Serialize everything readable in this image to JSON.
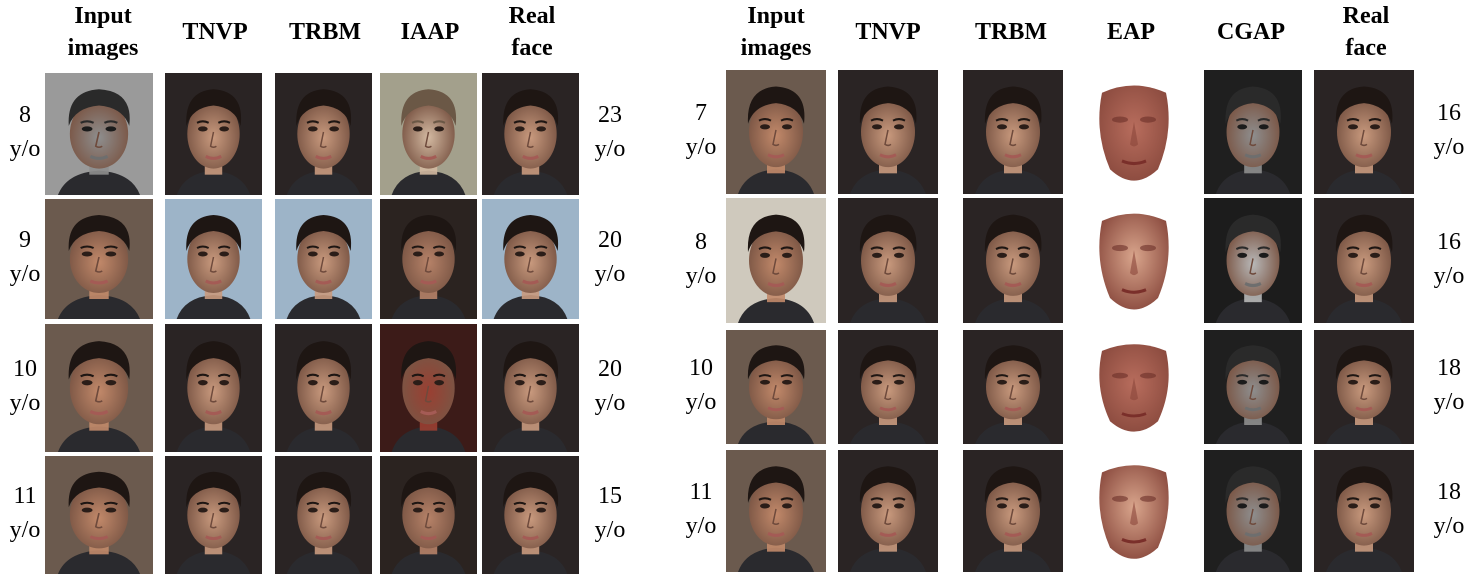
{
  "left_panel": {
    "headers": [
      "Input\nimages",
      "TNVP",
      "TRBM",
      "IAAP",
      "Real\nface"
    ],
    "rows": [
      {
        "input_age": "8\ny/o",
        "target_age": "23\ny/o"
      },
      {
        "input_age": "9\ny/o",
        "target_age": "20\ny/o"
      },
      {
        "input_age": "10\ny/o",
        "target_age": "20\ny/o"
      },
      {
        "input_age": "11\ny/o",
        "target_age": "15\ny/o"
      }
    ]
  },
  "right_panel": {
    "headers": [
      "Input\nimages",
      "TNVP",
      "TRBM",
      "EAP",
      "CGAP",
      "Real\nface"
    ],
    "rows": [
      {
        "input_age": "7\ny/o",
        "target_age": "16\ny/o"
      },
      {
        "input_age": "8\ny/o",
        "target_age": "16\ny/o"
      },
      {
        "input_age": "10\ny/o",
        "target_age": "18\ny/o"
      },
      {
        "input_age": "11\ny/o",
        "target_age": "18\ny/o"
      }
    ]
  },
  "colors": {
    "skin": "#c99a7e",
    "hair": "#1e1613",
    "gray_bg": "#9a9a9a",
    "blue_bg": "#9db4c8",
    "dark_bg": "#2a2424",
    "eap_skin": "#b86d5d"
  }
}
